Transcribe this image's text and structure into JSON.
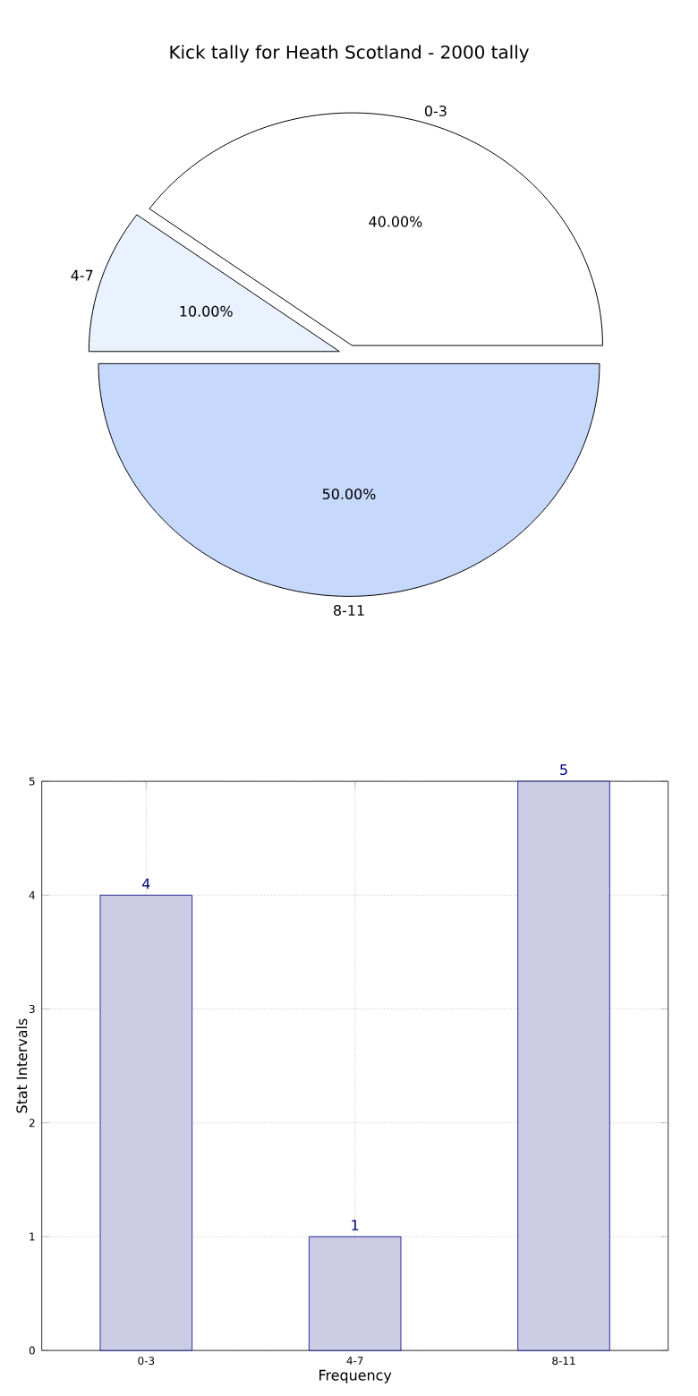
{
  "chart_data": [
    {
      "type": "pie",
      "title": "Kick tally for Heath Scotland - 2000 tally",
      "categories": [
        "0-3",
        "4-7",
        "8-11"
      ],
      "values": [
        40,
        10,
        50
      ],
      "colors": [
        "#ffffff",
        "#eaf1ff",
        "#c6d9fd"
      ],
      "value_labels": [
        "40.00%",
        "10.00%",
        "50.00%"
      ]
    },
    {
      "type": "bar",
      "categories": [
        "0-3",
        "4-7",
        "8-11"
      ],
      "values": [
        4,
        1,
        5
      ],
      "color": "#ccccE5",
      "ylim": [
        0,
        5
      ],
      "yticks": [
        0,
        1,
        2,
        3,
        4,
        5
      ],
      "grid": true,
      "data_labels": true,
      "xlabel": "Frequency",
      "ylabel": "Stat Intervals"
    }
  ]
}
